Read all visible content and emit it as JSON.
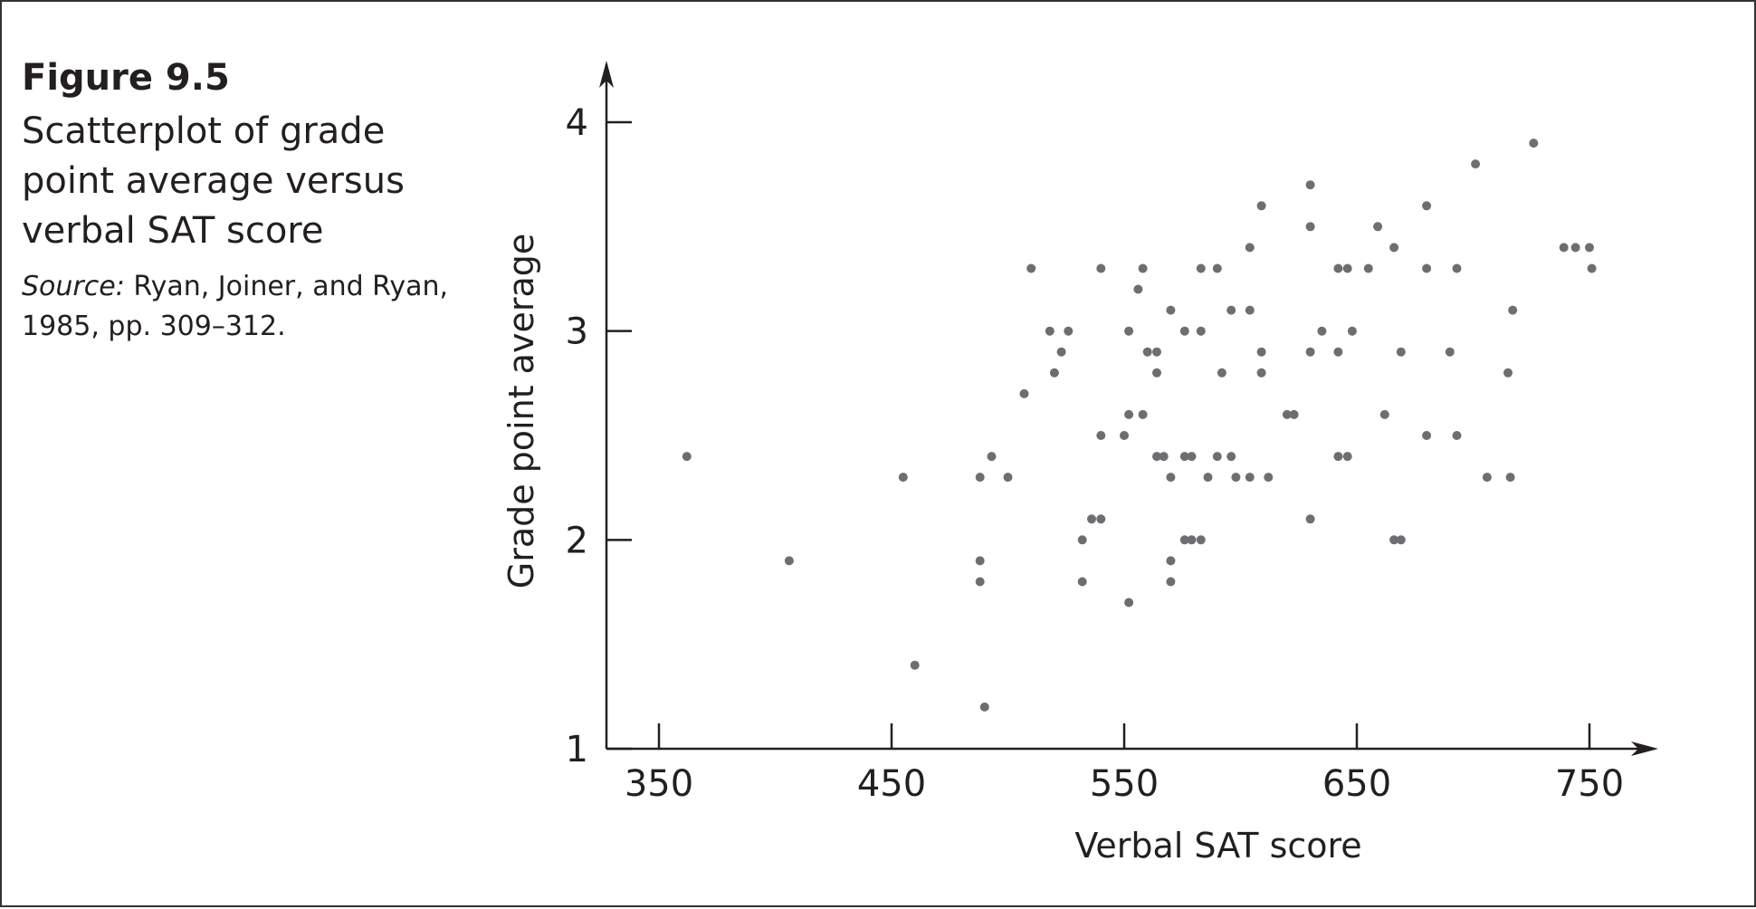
{
  "figure": {
    "label": "Figure 9.5",
    "title": "Scatterplot of grade point average versus verbal SAT score",
    "source_label": "Source:",
    "source_text": "Ryan, Joiner, and Ryan, 1985, pp. 309–312."
  },
  "colors": {
    "points": "#6d6e71",
    "axes": "#231f20",
    "border": "#333333"
  },
  "chart_data": {
    "type": "scatter",
    "title": "",
    "xlabel": "Verbal SAT score",
    "ylabel": "Grade point average",
    "xlim": [
      327,
      778
    ],
    "ylim": [
      1,
      4.3
    ],
    "xticks": [
      350,
      450,
      550,
      650,
      750
    ],
    "yticks": [
      1,
      2,
      3,
      4
    ],
    "grid": false,
    "legend": "none",
    "points": [
      [
        362,
        2.4
      ],
      [
        406,
        1.9
      ],
      [
        455,
        2.3
      ],
      [
        460,
        1.4
      ],
      [
        488,
        2.3
      ],
      [
        488,
        1.9
      ],
      [
        488,
        1.8
      ],
      [
        490,
        1.2
      ],
      [
        493,
        2.4
      ],
      [
        500,
        2.3
      ],
      [
        507,
        2.7
      ],
      [
        510,
        3.3
      ],
      [
        518,
        3.0
      ],
      [
        520,
        2.8
      ],
      [
        523,
        2.9
      ],
      [
        526,
        3.0
      ],
      [
        532,
        2.0
      ],
      [
        532,
        1.8
      ],
      [
        536,
        2.1
      ],
      [
        540,
        2.1
      ],
      [
        540,
        3.3
      ],
      [
        540,
        2.5
      ],
      [
        550,
        2.5
      ],
      [
        552,
        3.0
      ],
      [
        552,
        2.6
      ],
      [
        552,
        1.7
      ],
      [
        556,
        3.2
      ],
      [
        558,
        3.3
      ],
      [
        558,
        2.6
      ],
      [
        560,
        2.9
      ],
      [
        564,
        2.9
      ],
      [
        564,
        2.8
      ],
      [
        564,
        2.4
      ],
      [
        567,
        2.4
      ],
      [
        570,
        3.1
      ],
      [
        570,
        2.3
      ],
      [
        570,
        1.9
      ],
      [
        570,
        1.8
      ],
      [
        576,
        3.0
      ],
      [
        576,
        2.4
      ],
      [
        576,
        2.0
      ],
      [
        579,
        2.4
      ],
      [
        579,
        2.0
      ],
      [
        583,
        3.3
      ],
      [
        583,
        3.0
      ],
      [
        583,
        2.0
      ],
      [
        586,
        2.3
      ],
      [
        590,
        3.3
      ],
      [
        590,
        2.4
      ],
      [
        592,
        2.8
      ],
      [
        596,
        3.1
      ],
      [
        596,
        2.4
      ],
      [
        598,
        2.3
      ],
      [
        604,
        3.4
      ],
      [
        604,
        3.1
      ],
      [
        604,
        2.3
      ],
      [
        609,
        3.6
      ],
      [
        609,
        2.9
      ],
      [
        609,
        2.8
      ],
      [
        612,
        2.3
      ],
      [
        620,
        2.6
      ],
      [
        623,
        2.6
      ],
      [
        630,
        3.7
      ],
      [
        630,
        3.5
      ],
      [
        630,
        2.9
      ],
      [
        630,
        2.1
      ],
      [
        635,
        3.0
      ],
      [
        642,
        3.3
      ],
      [
        642,
        2.9
      ],
      [
        642,
        2.4
      ],
      [
        646,
        3.3
      ],
      [
        646,
        2.4
      ],
      [
        648,
        3.0
      ],
      [
        655,
        3.3
      ],
      [
        659,
        3.5
      ],
      [
        662,
        2.6
      ],
      [
        666,
        3.4
      ],
      [
        666,
        2.0
      ],
      [
        669,
        2.9
      ],
      [
        669,
        2.0
      ],
      [
        680,
        3.6
      ],
      [
        680,
        3.3
      ],
      [
        680,
        2.5
      ],
      [
        690,
        2.9
      ],
      [
        693,
        3.3
      ],
      [
        693,
        2.5
      ],
      [
        701,
        3.8
      ],
      [
        706,
        2.3
      ],
      [
        715,
        2.8
      ],
      [
        716,
        2.3
      ],
      [
        717,
        3.1
      ],
      [
        726,
        3.9
      ],
      [
        739,
        3.4
      ],
      [
        744,
        3.4
      ],
      [
        750,
        3.4
      ],
      [
        751,
        3.3
      ]
    ]
  }
}
